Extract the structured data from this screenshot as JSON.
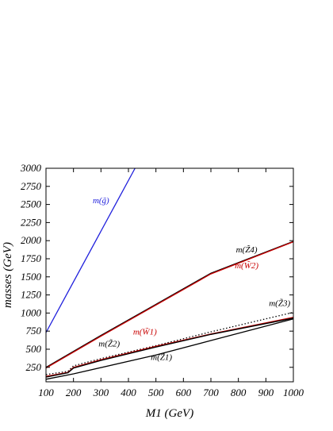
{
  "chart_data": {
    "type": "line",
    "xlabel": "M1 (GeV)",
    "ylabel": "masses (GeV)",
    "xlim": [
      100,
      1000
    ],
    "ylim": [
      50,
      3000
    ],
    "xticks": [
      100,
      200,
      300,
      400,
      500,
      600,
      700,
      800,
      900,
      1000
    ],
    "yticks": [
      250,
      500,
      750,
      1000,
      1250,
      1500,
      1750,
      2000,
      2250,
      2500,
      2750,
      3000
    ],
    "grid": false,
    "legend": "none",
    "series": [
      {
        "name": "m(g̃)",
        "color": "#1f1fdc",
        "style": "solid",
        "x": [
          100,
          424
        ],
        "y": [
          730,
          3000
        ],
        "label": {
          "x": 300,
          "y": 2520
        }
      },
      {
        "name": "m(Z̃4)",
        "color": "#000000",
        "style": "solid",
        "x": [
          100,
          300,
          500,
          700,
          1000
        ],
        "y": [
          250,
          690,
          1120,
          1550,
          1990
        ],
        "label": {
          "x": 830,
          "y": 1840
        }
      },
      {
        "name": "m(W̃2)",
        "color": "#c80000",
        "style": "solid",
        "x": [
          100,
          300,
          500,
          700,
          1000
        ],
        "y": [
          240,
          680,
          1110,
          1540,
          1985
        ],
        "label": {
          "x": 830,
          "y": 1620
        }
      },
      {
        "name": "m(Z̃3)",
        "color": "#000000",
        "style": "dotted",
        "x": [
          100,
          180,
          200,
          300,
          500,
          700,
          1000
        ],
        "y": [
          150,
          195,
          270,
          370,
          550,
          740,
          1010
        ],
        "label": {
          "x": 950,
          "y": 1100
        }
      },
      {
        "name": "m(W̃1)",
        "color": "#c80000",
        "style": "solid",
        "x": [
          100,
          180,
          200,
          300,
          500,
          700,
          1000
        ],
        "y": [
          125,
          180,
          250,
          355,
          540,
          710,
          940
        ],
        "label": {
          "x": 460,
          "y": 700
        }
      },
      {
        "name": "m(Z̃2)",
        "color": "#000000",
        "style": "solid",
        "x": [
          100,
          180,
          200,
          300,
          500,
          700,
          1000
        ],
        "y": [
          115,
          175,
          240,
          345,
          530,
          705,
          930
        ],
        "label": {
          "x": 330,
          "y": 540
        }
      },
      {
        "name": "m(Z̃1)",
        "color": "#000000",
        "style": "solid",
        "x": [
          100,
          200,
          500,
          700,
          1000
        ],
        "y": [
          85,
          160,
          420,
          620,
          920
        ],
        "label": {
          "x": 520,
          "y": 350
        }
      }
    ]
  }
}
